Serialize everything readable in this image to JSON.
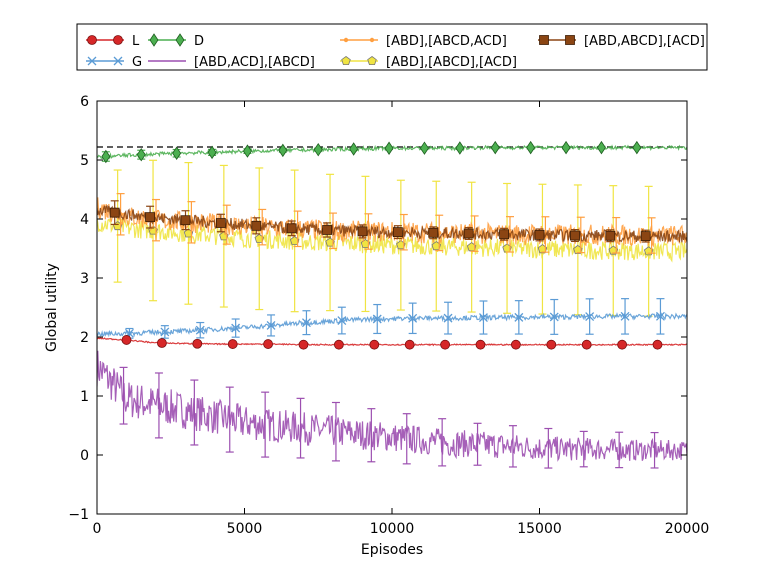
{
  "chart_data": {
    "type": "line",
    "xlabel": "Episodes",
    "ylabel": "Global utility",
    "xlim": [
      0,
      20000
    ],
    "ylim": [
      -1,
      6
    ],
    "x_ticks": [
      0,
      5000,
      10000,
      15000,
      20000
    ],
    "y_ticks": [
      -1,
      0,
      1,
      2,
      3,
      4,
      5,
      6
    ],
    "grid": false,
    "legend_position": "top",
    "reference_line": {
      "y": 5.22,
      "style": "dashed",
      "color": "#000000"
    },
    "series": [
      {
        "name": "L",
        "color": "#d62728",
        "marker": "circle",
        "x": [
          0,
          1000,
          2000,
          3000,
          4000,
          5000,
          6000,
          7000,
          8000,
          9000,
          10000,
          11000,
          12000,
          13000,
          14000,
          15000,
          16000,
          17000,
          18000,
          19000,
          20000
        ],
        "y": [
          1.98,
          1.95,
          1.9,
          1.89,
          1.88,
          1.88,
          1.88,
          1.87,
          1.87,
          1.87,
          1.87,
          1.87,
          1.87,
          1.87,
          1.87,
          1.87,
          1.87,
          1.87,
          1.87,
          1.87,
          1.87
        ],
        "err": [
          0.03,
          0.03,
          0.03,
          0.02,
          0.02,
          0.02,
          0.02,
          0.02,
          0.02,
          0.02,
          0.02,
          0.02,
          0.02,
          0.02,
          0.02,
          0.02,
          0.02,
          0.02,
          0.02,
          0.02,
          0.02
        ]
      },
      {
        "name": "G",
        "color": "#5b9bd5",
        "marker": "x",
        "x": [
          0,
          1000,
          2000,
          3000,
          4000,
          5000,
          6000,
          7000,
          8000,
          9000,
          10000,
          11000,
          12000,
          13000,
          14000,
          15000,
          16000,
          17000,
          18000,
          19000,
          20000
        ],
        "y": [
          2.05,
          2.06,
          2.08,
          2.1,
          2.13,
          2.16,
          2.2,
          2.24,
          2.27,
          2.3,
          2.31,
          2.32,
          2.32,
          2.33,
          2.33,
          2.34,
          2.34,
          2.35,
          2.35,
          2.35,
          2.35
        ],
        "err": [
          0.05,
          0.08,
          0.1,
          0.12,
          0.14,
          0.16,
          0.18,
          0.2,
          0.22,
          0.24,
          0.25,
          0.26,
          0.27,
          0.28,
          0.28,
          0.29,
          0.3,
          0.3,
          0.3,
          0.3,
          0.3
        ]
      },
      {
        "name": "D",
        "color": "#4caf50",
        "marker": "diamond",
        "x": [
          0,
          1000,
          2000,
          3000,
          4000,
          5000,
          6000,
          7000,
          8000,
          9000,
          10000,
          11000,
          12000,
          13000,
          14000,
          15000,
          16000,
          17000,
          18000,
          19000,
          20000
        ],
        "y": [
          5.05,
          5.08,
          5.1,
          5.12,
          5.13,
          5.15,
          5.16,
          5.17,
          5.18,
          5.19,
          5.2,
          5.2,
          5.2,
          5.21,
          5.21,
          5.21,
          5.21,
          5.21,
          5.21,
          5.21,
          5.21
        ],
        "err": [
          0.08,
          0.08,
          0.07,
          0.06,
          0.05,
          0.04,
          0.03,
          0.03,
          0.02,
          0.02,
          0.02,
          0.02,
          0.02,
          0.02,
          0.02,
          0.02,
          0.02,
          0.02,
          0.02,
          0.02,
          0.02
        ]
      },
      {
        "name": "[ABD,ACD],[ABCD]",
        "color": "#9c4fb0",
        "marker": "none",
        "x": [
          0,
          1000,
          2000,
          3000,
          4000,
          5000,
          6000,
          7000,
          8000,
          9000,
          10000,
          11000,
          12000,
          13000,
          14000,
          15000,
          16000,
          17000,
          18000,
          19000,
          20000
        ],
        "y": [
          1.5,
          0.95,
          0.85,
          0.75,
          0.65,
          0.55,
          0.5,
          0.45,
          0.4,
          0.35,
          0.3,
          0.25,
          0.2,
          0.18,
          0.15,
          0.12,
          0.1,
          0.1,
          0.08,
          0.08,
          0.08
        ],
        "err": [
          0.3,
          0.5,
          0.55,
          0.55,
          0.55,
          0.55,
          0.55,
          0.5,
          0.5,
          0.45,
          0.45,
          0.4,
          0.4,
          0.35,
          0.35,
          0.35,
          0.3,
          0.3,
          0.3,
          0.3,
          0.3
        ]
      },
      {
        "name": "[ABD],[ABCD,ACD]",
        "color": "#ff9f40",
        "marker": "dot",
        "x": [
          0,
          1000,
          2000,
          3000,
          4000,
          5000,
          6000,
          7000,
          8000,
          9000,
          10000,
          11000,
          12000,
          13000,
          14000,
          15000,
          16000,
          17000,
          18000,
          19000,
          20000
        ],
        "y": [
          4.2,
          4.05,
          3.98,
          3.95,
          3.92,
          3.88,
          3.85,
          3.83,
          3.8,
          3.79,
          3.78,
          3.77,
          3.76,
          3.75,
          3.74,
          3.74,
          3.73,
          3.73,
          3.72,
          3.72,
          3.72
        ],
        "err": [
          0.35,
          0.35,
          0.35,
          0.35,
          0.35,
          0.3,
          0.3,
          0.3,
          0.3,
          0.3,
          0.3,
          0.3,
          0.3,
          0.3,
          0.3,
          0.3,
          0.3,
          0.3,
          0.3,
          0.3,
          0.3
        ]
      },
      {
        "name": "[ABD],[ABCD],[ACD]",
        "color": "#f0e442",
        "marker": "pentagon",
        "x": [
          0,
          1000,
          2000,
          3000,
          4000,
          5000,
          6000,
          7000,
          8000,
          9000,
          10000,
          11000,
          12000,
          13000,
          14000,
          15000,
          16000,
          17000,
          18000,
          19000,
          20000
        ],
        "y": [
          3.95,
          3.85,
          3.8,
          3.76,
          3.72,
          3.68,
          3.65,
          3.62,
          3.6,
          3.58,
          3.56,
          3.55,
          3.53,
          3.52,
          3.5,
          3.49,
          3.48,
          3.47,
          3.46,
          3.45,
          3.45
        ],
        "err": [
          0.6,
          1.1,
          1.2,
          1.2,
          1.2,
          1.2,
          1.2,
          1.2,
          1.15,
          1.15,
          1.1,
          1.1,
          1.1,
          1.1,
          1.1,
          1.1,
          1.1,
          1.1,
          1.1,
          1.1,
          1.1
        ]
      },
      {
        "name": "[ABD,ABCD],[ACD]",
        "color": "#8b4513",
        "marker": "square",
        "x": [
          0,
          1000,
          2000,
          3000,
          4000,
          5000,
          6000,
          7000,
          8000,
          9000,
          10000,
          11000,
          12000,
          13000,
          14000,
          15000,
          16000,
          17000,
          18000,
          19000,
          20000
        ],
        "y": [
          4.15,
          4.08,
          4.02,
          3.98,
          3.94,
          3.9,
          3.86,
          3.83,
          3.81,
          3.79,
          3.78,
          3.77,
          3.76,
          3.75,
          3.74,
          3.73,
          3.72,
          3.72,
          3.71,
          3.71,
          3.7
        ],
        "err": [
          0.2,
          0.2,
          0.18,
          0.16,
          0.15,
          0.14,
          0.13,
          0.12,
          0.12,
          0.11,
          0.11,
          0.1,
          0.1,
          0.1,
          0.1,
          0.1,
          0.1,
          0.1,
          0.1,
          0.1,
          0.1
        ]
      }
    ]
  }
}
